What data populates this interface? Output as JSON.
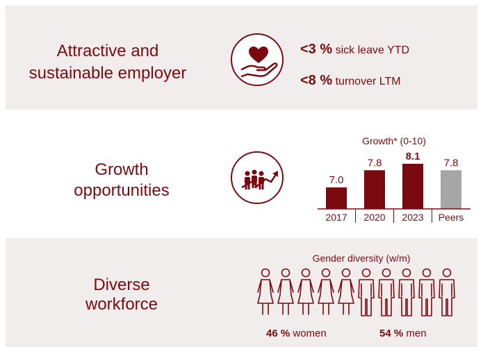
{
  "employer": {
    "heading": "Attractive and sustainable employer",
    "icon": "heart-hand-icon",
    "stats": [
      {
        "value": "<3 %",
        "label": "sick leave YTD"
      },
      {
        "value": "<8 %",
        "label": "turnover LTM"
      }
    ]
  },
  "growth": {
    "heading": "Growth opportunities",
    "icon": "people-growth-icon"
  },
  "diversity": {
    "heading": "Diverse workforce",
    "title": "Gender diversity (w/m)",
    "women_count": 5,
    "men_count": 5,
    "women_value": "46 %",
    "women_label": "women",
    "men_value": "54 %",
    "men_label": "men"
  },
  "colors": {
    "accent": "#7a0a10",
    "peer": "#a6a6a6",
    "panel": "#f2eded"
  },
  "chart_data": {
    "type": "bar",
    "title": "Growth* (0-10)",
    "categories": [
      "2017",
      "2020",
      "2023",
      "Peers"
    ],
    "values": [
      7.0,
      7.8,
      8.1,
      7.8
    ],
    "value_labels": [
      "7.0",
      "7.8",
      "8.1",
      "7.8"
    ],
    "bold": [
      false,
      false,
      true,
      false
    ],
    "ylim": [
      0,
      10
    ]
  }
}
